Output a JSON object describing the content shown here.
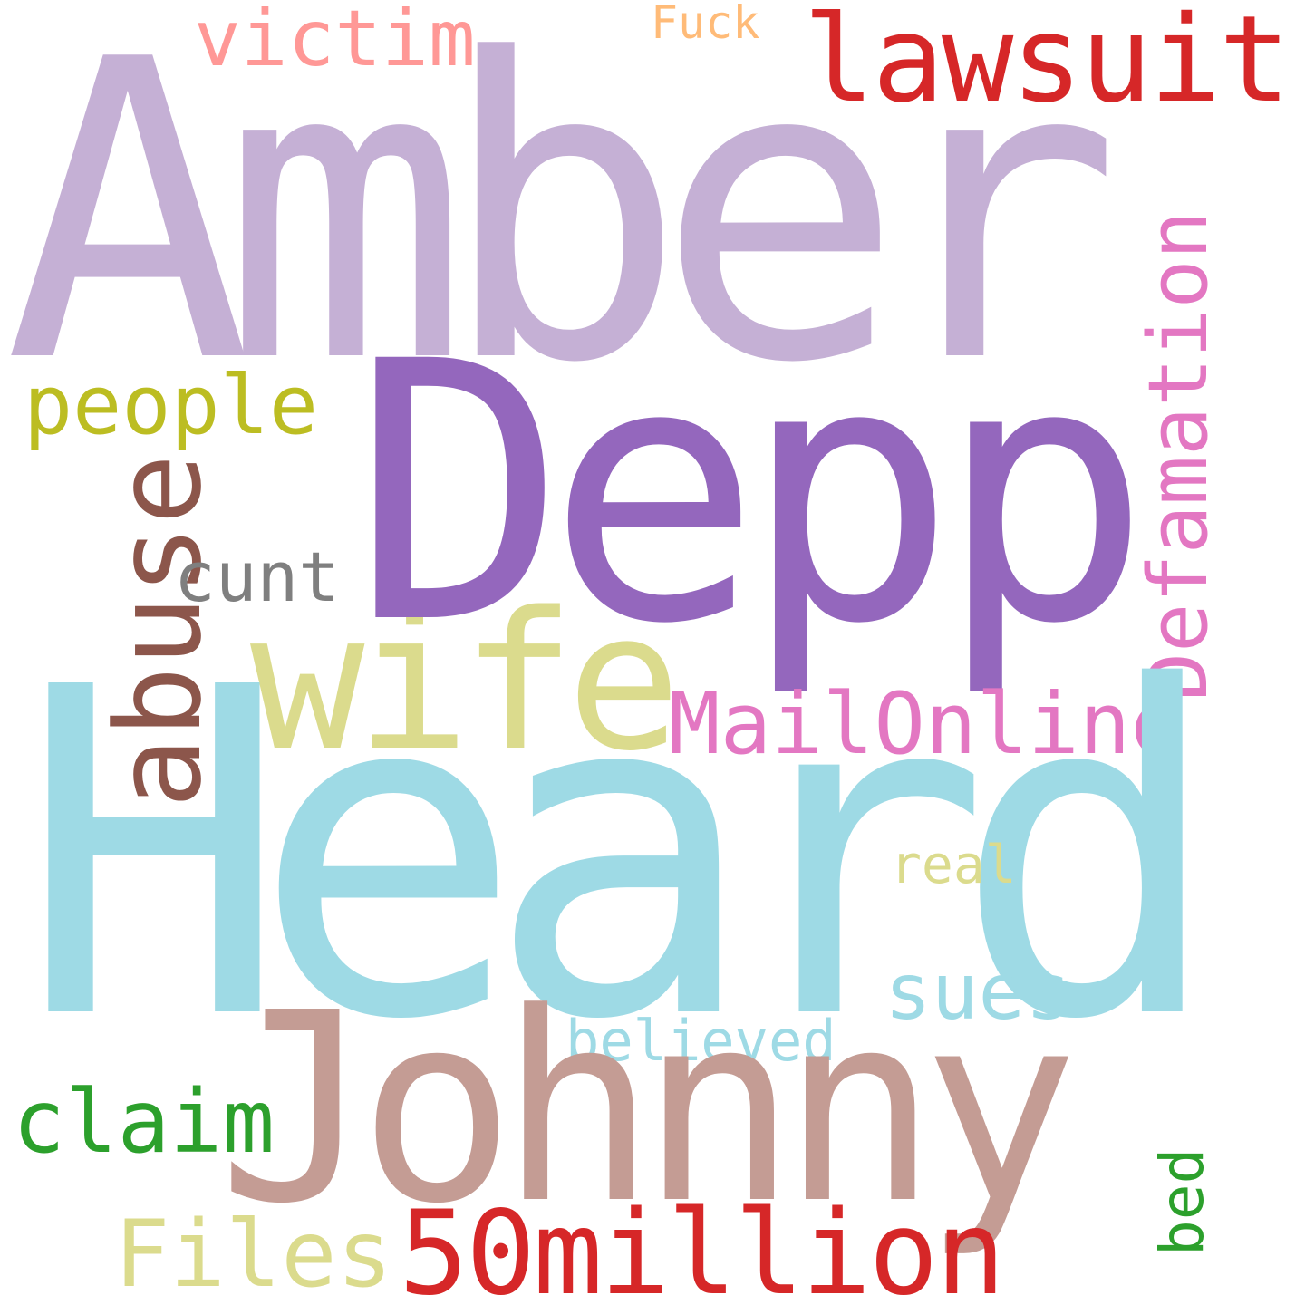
{
  "background": "#ffffff",
  "words": {
    "amber": {
      "text": "Amber",
      "color": "#c5b0d5",
      "orientation": "horizontal"
    },
    "depp": {
      "text": "Depp",
      "color": "#9467bd",
      "orientation": "horizontal"
    },
    "heard": {
      "text": "Heard",
      "color": "#9edae5",
      "orientation": "horizontal"
    },
    "johnny": {
      "text": "Johnny",
      "color": "#c49c94",
      "orientation": "horizontal"
    },
    "lawsuit": {
      "text": "lawsuit",
      "color": "#d62728",
      "orientation": "horizontal"
    },
    "victim": {
      "text": "victim",
      "color": "#ff9896",
      "orientation": "horizontal"
    },
    "fuck": {
      "text": "Fuck",
      "color": "#ffbb78",
      "orientation": "horizontal"
    },
    "people": {
      "text": "people",
      "color": "#bcbd22",
      "orientation": "horizontal"
    },
    "abuse": {
      "text": "abuse",
      "color": "#8c564b",
      "orientation": "vertical"
    },
    "cunt": {
      "text": "cunt",
      "color": "#7f7f7f",
      "orientation": "horizontal"
    },
    "wife": {
      "text": "wife",
      "color": "#dbdb8d",
      "orientation": "horizontal"
    },
    "defamation": {
      "text": "Defamation",
      "color": "#e377c2",
      "orientation": "vertical"
    },
    "mailonline": {
      "text": "MailOnline",
      "color": "#e377c2",
      "orientation": "horizontal"
    },
    "real": {
      "text": "real",
      "color": "#dbdb8d",
      "orientation": "horizontal"
    },
    "sues": {
      "text": "sues",
      "color": "#9edae5",
      "orientation": "horizontal"
    },
    "believed": {
      "text": "believed",
      "color": "#9edae5",
      "orientation": "horizontal"
    },
    "claim": {
      "text": "claim",
      "color": "#2ca02c",
      "orientation": "horizontal"
    },
    "files": {
      "text": "Files",
      "color": "#dbdb8d",
      "orientation": "horizontal"
    },
    "fiftymillion": {
      "text": "50million",
      "color": "#d62728",
      "orientation": "horizontal"
    },
    "bed": {
      "text": "bed",
      "color": "#2ca02c",
      "orientation": "vertical"
    }
  }
}
